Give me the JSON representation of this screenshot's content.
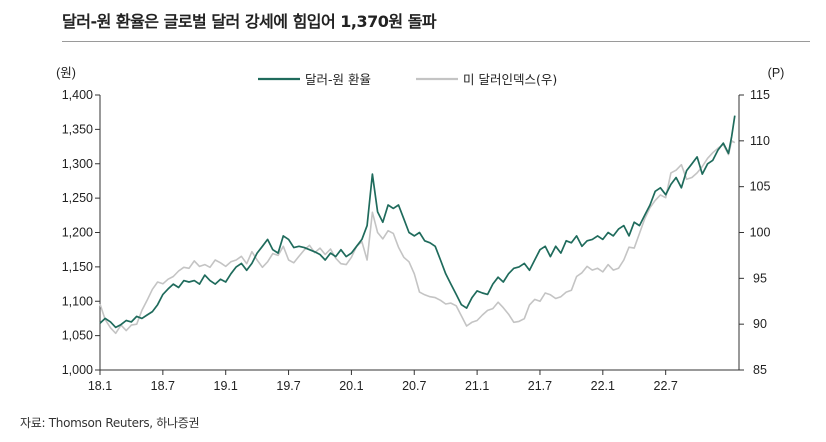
{
  "header": {
    "title": "달러-원 환율은 글로벌 달러 강세에 힘입어 1,370원 돌파",
    "source": "자료: Thomson Reuters, 하나증권"
  },
  "chart_data": {
    "type": "line",
    "title": "달러-원 환율은 글로벌 달러 강세에 힘입어 1,370원 돌파",
    "y_left_label": "(원)",
    "y_right_label": "(P)",
    "ylim_left": [
      1000,
      1400
    ],
    "ylim_right": [
      85,
      115
    ],
    "y_left_ticks": [
      "1,000",
      "1,050",
      "1,100",
      "1,150",
      "1,200",
      "1,250",
      "1,300",
      "1,350",
      "1,400"
    ],
    "y_right_ticks": [
      "85",
      "90",
      "95",
      "100",
      "105",
      "110",
      "115"
    ],
    "x_ticks": [
      "18.1",
      "18.7",
      "19.1",
      "19.7",
      "20.1",
      "20.7",
      "21.1",
      "21.7",
      "22.1",
      "22.7"
    ],
    "x_ticks_t": [
      0,
      6,
      12,
      18,
      24,
      30,
      36,
      42,
      48,
      54
    ],
    "x_range_t": [
      0,
      61
    ],
    "legend": [
      "달러-원 환율",
      "미 달러인덱스(우)"
    ],
    "legend_position": "top-center",
    "grid": false,
    "colors": {
      "krw": "#1f6b5c",
      "dxy": "#c4c4c4",
      "axis": "#333333"
    },
    "series": [
      {
        "name": "달러-원 환율",
        "axis": "left",
        "x": [
          0,
          0.5,
          1,
          1.5,
          2,
          2.5,
          3,
          3.5,
          4,
          4.5,
          5,
          5.5,
          6,
          6.5,
          7,
          7.5,
          8,
          8.5,
          9,
          9.5,
          10,
          10.5,
          11,
          11.5,
          12,
          12.5,
          13,
          13.5,
          14,
          14.5,
          15,
          15.5,
          16,
          16.5,
          17,
          17.5,
          18,
          18.5,
          19,
          19.5,
          20,
          20.5,
          21,
          21.5,
          22,
          22.5,
          23,
          23.5,
          24,
          24.5,
          25,
          25.5,
          26,
          26.5,
          27,
          27.5,
          28,
          28.5,
          29,
          29.5,
          30,
          30.5,
          31,
          31.5,
          32,
          32.5,
          33,
          33.5,
          34,
          34.5,
          35,
          35.5,
          36,
          36.5,
          37,
          37.5,
          38,
          38.5,
          39,
          39.5,
          40,
          40.5,
          41,
          41.5,
          42,
          42.5,
          43,
          43.5,
          44,
          44.5,
          45,
          45.5,
          46,
          46.5,
          47,
          47.5,
          48,
          48.5,
          49,
          49.5,
          50,
          50.5,
          51,
          51.5,
          52,
          52.5,
          53,
          53.5,
          54,
          54.5,
          55,
          55.5,
          56,
          56.5,
          57,
          57.5,
          58,
          58.5,
          59,
          59.5,
          60,
          60.3,
          60.6
        ],
        "values": [
          1068,
          1075,
          1070,
          1062,
          1066,
          1072,
          1070,
          1078,
          1075,
          1080,
          1085,
          1095,
          1110,
          1118,
          1125,
          1120,
          1130,
          1128,
          1130,
          1125,
          1138,
          1130,
          1125,
          1132,
          1128,
          1140,
          1150,
          1155,
          1145,
          1155,
          1170,
          1180,
          1190,
          1175,
          1170,
          1195,
          1190,
          1178,
          1180,
          1178,
          1175,
          1172,
          1168,
          1160,
          1170,
          1165,
          1175,
          1165,
          1170,
          1180,
          1190,
          1210,
          1285,
          1230,
          1215,
          1240,
          1235,
          1240,
          1220,
          1200,
          1195,
          1200,
          1188,
          1185,
          1180,
          1160,
          1140,
          1125,
          1110,
          1095,
          1090,
          1105,
          1115,
          1112,
          1110,
          1125,
          1135,
          1128,
          1140,
          1148,
          1150,
          1155,
          1145,
          1160,
          1175,
          1180,
          1165,
          1180,
          1170,
          1188,
          1185,
          1195,
          1180,
          1188,
          1190,
          1195,
          1190,
          1200,
          1195,
          1205,
          1210,
          1195,
          1215,
          1210,
          1225,
          1240,
          1260,
          1265,
          1255,
          1270,
          1280,
          1265,
          1290,
          1300,
          1310,
          1285,
          1300,
          1305,
          1320,
          1330,
          1315,
          1340,
          1370
        ]
      },
      {
        "name": "미 달러인덱스(우)",
        "axis": "right",
        "x": [
          0,
          0.5,
          1,
          1.5,
          2,
          2.5,
          3,
          3.5,
          4,
          4.5,
          5,
          5.5,
          6,
          6.5,
          7,
          7.5,
          8,
          8.5,
          9,
          9.5,
          10,
          10.5,
          11,
          11.5,
          12,
          12.5,
          13,
          13.5,
          14,
          14.5,
          15,
          15.5,
          16,
          16.5,
          17,
          17.5,
          18,
          18.5,
          19,
          19.5,
          20,
          20.5,
          21,
          21.5,
          22,
          22.5,
          23,
          23.5,
          24,
          24.5,
          25,
          25.5,
          26,
          26.5,
          27,
          27.5,
          28,
          28.5,
          29,
          29.5,
          30,
          30.5,
          31,
          31.5,
          32,
          32.5,
          33,
          33.5,
          34,
          34.5,
          35,
          35.5,
          36,
          36.5,
          37,
          37.5,
          38,
          38.5,
          39,
          39.5,
          40,
          40.5,
          41,
          41.5,
          42,
          42.5,
          43,
          43.5,
          44,
          44.5,
          45,
          45.5,
          46,
          46.5,
          47,
          47.5,
          48,
          48.5,
          49,
          49.5,
          50,
          50.5,
          51,
          51.5,
          52,
          52.5,
          53,
          53.5,
          54,
          54.5,
          55,
          55.5,
          56,
          56.5,
          57,
          57.5,
          58,
          58.5,
          59,
          59.5,
          60,
          60.3,
          60.6
        ],
        "values": [
          92.2,
          90.5,
          89.6,
          89.0,
          89.9,
          89.3,
          89.9,
          90.0,
          91.5,
          92.6,
          93.8,
          94.6,
          94.4,
          94.9,
          95.2,
          95.8,
          96.2,
          96.1,
          96.9,
          96.3,
          96.5,
          96.2,
          97.0,
          96.7,
          96.3,
          96.8,
          97.0,
          97.4,
          96.6,
          97.9,
          97.0,
          96.2,
          96.8,
          97.7,
          97.5,
          98.5,
          97.0,
          96.7,
          97.4,
          98.1,
          98.6,
          97.8,
          98.3,
          97.6,
          98.2,
          97.2,
          96.6,
          96.5,
          97.3,
          98.5,
          99.0,
          97.0,
          102.2,
          100.0,
          99.3,
          100.2,
          99.9,
          98.4,
          97.3,
          96.8,
          95.5,
          93.5,
          93.2,
          93.0,
          92.9,
          92.6,
          92.2,
          92.3,
          92.0,
          90.9,
          89.8,
          90.2,
          90.4,
          91.0,
          91.5,
          91.7,
          92.4,
          91.8,
          91.1,
          90.2,
          90.3,
          90.6,
          92.1,
          92.7,
          92.5,
          93.4,
          93.2,
          92.8,
          93.0,
          93.5,
          93.7,
          95.2,
          95.6,
          96.3,
          95.9,
          96.1,
          95.7,
          96.5,
          95.9,
          96.1,
          97.0,
          98.4,
          98.3,
          99.9,
          101.5,
          102.7,
          103.5,
          104.1,
          103.8,
          106.5,
          106.8,
          107.4,
          105.8,
          106.0,
          106.5,
          107.2,
          108.1,
          108.7,
          109.2,
          109.6,
          108.5,
          110.0,
          109.8
        ]
      }
    ]
  }
}
